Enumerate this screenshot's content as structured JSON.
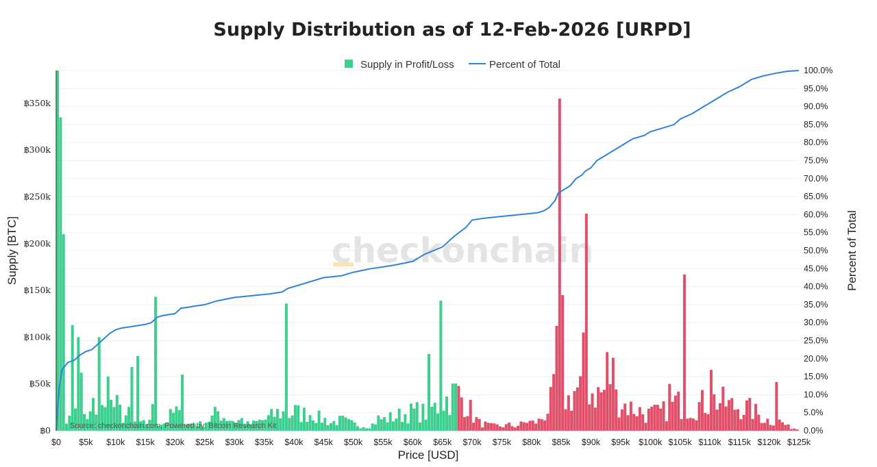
{
  "chart_data": {
    "type": "bar",
    "title": "Supply Distribution as of 12-Feb-2026 [URPD]",
    "xlabel": "Price [USD]",
    "ylabel": "Supply [BTC]",
    "y2label": "Percent of Total",
    "xlim": [
      0,
      125000
    ],
    "ylim": [
      0,
      385000
    ],
    "y2lim": [
      0,
      100
    ],
    "bin_width": 500,
    "current_price": 67500,
    "colors": {
      "profit": "#3ccf8e",
      "loss": "#e0506b",
      "line": "#2d83d9"
    },
    "legend": [
      {
        "name": "Supply in Profit/Loss",
        "kind": "square",
        "color": "#3ccf8e"
      },
      {
        "name": "Percent of Total",
        "kind": "line",
        "color": "#2d83d9"
      }
    ],
    "watermark": "checkonchain",
    "source": "Source: checkonchain.com, Powered by: Bitcoin Research Kit",
    "x_ticks": [
      {
        "v": 0,
        "l": "$0"
      },
      {
        "v": 5000,
        "l": "$5k"
      },
      {
        "v": 10000,
        "l": "$10k"
      },
      {
        "v": 15000,
        "l": "$15k"
      },
      {
        "v": 20000,
        "l": "$20k"
      },
      {
        "v": 25000,
        "l": "$25k"
      },
      {
        "v": 30000,
        "l": "$30k"
      },
      {
        "v": 35000,
        "l": "$35k"
      },
      {
        "v": 40000,
        "l": "$40k"
      },
      {
        "v": 45000,
        "l": "$45k"
      },
      {
        "v": 50000,
        "l": "$50k"
      },
      {
        "v": 55000,
        "l": "$55k"
      },
      {
        "v": 60000,
        "l": "$60k"
      },
      {
        "v": 65000,
        "l": "$65k"
      },
      {
        "v": 70000,
        "l": "$70k"
      },
      {
        "v": 75000,
        "l": "$75k"
      },
      {
        "v": 80000,
        "l": "$80k"
      },
      {
        "v": 85000,
        "l": "$85k"
      },
      {
        "v": 90000,
        "l": "$90k"
      },
      {
        "v": 95000,
        "l": "$95k"
      },
      {
        "v": 100000,
        "l": "$100k"
      },
      {
        "v": 105000,
        "l": "$105k"
      },
      {
        "v": 110000,
        "l": "$110k"
      },
      {
        "v": 115000,
        "l": "$115k"
      },
      {
        "v": 120000,
        "l": "$120k"
      },
      {
        "v": 125000,
        "l": "$125k"
      }
    ],
    "y_ticks": [
      {
        "v": 0,
        "l": "฿0"
      },
      {
        "v": 50000,
        "l": "฿50k"
      },
      {
        "v": 100000,
        "l": "฿100k"
      },
      {
        "v": 150000,
        "l": "฿150k"
      },
      {
        "v": 200000,
        "l": "฿200k"
      },
      {
        "v": 250000,
        "l": "฿250k"
      },
      {
        "v": 300000,
        "l": "฿300k"
      },
      {
        "v": 350000,
        "l": "฿350k"
      }
    ],
    "y2_ticks": [
      {
        "v": 0,
        "l": "0.0%"
      },
      {
        "v": 5,
        "l": "5.0%"
      },
      {
        "v": 10,
        "l": "10.0%"
      },
      {
        "v": 15,
        "l": "15.0%"
      },
      {
        "v": 20,
        "l": "20.0%"
      },
      {
        "v": 25,
        "l": "25.0%"
      },
      {
        "v": 30,
        "l": "30.0%"
      },
      {
        "v": 35,
        "l": "35.0%"
      },
      {
        "v": 40,
        "l": "40.0%"
      },
      {
        "v": 45,
        "l": "45.0%"
      },
      {
        "v": 50,
        "l": "50.0%"
      },
      {
        "v": 55,
        "l": "55.0%"
      },
      {
        "v": 60,
        "l": "60.0%"
      },
      {
        "v": 65,
        "l": "65.0%"
      },
      {
        "v": 70,
        "l": "70.0%"
      },
      {
        "v": 75,
        "l": "75.0%"
      },
      {
        "v": 80,
        "l": "80.0%"
      },
      {
        "v": 85,
        "l": "85.0%"
      },
      {
        "v": 90,
        "l": "90.0%"
      },
      {
        "v": 95,
        "l": "95.0%"
      },
      {
        "v": 100,
        "l": "100.0%"
      }
    ],
    "supply_profile": [
      [
        0,
        45000
      ],
      [
        500,
        25000
      ],
      [
        1000,
        12000
      ],
      [
        2000,
        15000
      ],
      [
        3000,
        35000
      ],
      [
        4000,
        28000
      ],
      [
        5000,
        12000
      ],
      [
        6000,
        30000
      ],
      [
        7000,
        28000
      ],
      [
        8000,
        24000
      ],
      [
        9000,
        32000
      ],
      [
        10000,
        30000
      ],
      [
        11000,
        18000
      ],
      [
        12000,
        20000
      ],
      [
        13000,
        10000
      ],
      [
        14000,
        8000
      ],
      [
        15000,
        10000
      ],
      [
        16000,
        24000
      ],
      [
        17000,
        10000
      ],
      [
        18000,
        10000
      ],
      [
        19000,
        18000
      ],
      [
        20000,
        24000
      ],
      [
        21000,
        12000
      ],
      [
        22000,
        8000
      ],
      [
        23000,
        10000
      ],
      [
        24000,
        8000
      ],
      [
        25000,
        12000
      ],
      [
        26000,
        16000
      ],
      [
        27000,
        24000
      ],
      [
        28000,
        18000
      ],
      [
        29000,
        15000
      ],
      [
        30000,
        12000
      ],
      [
        31000,
        14000
      ],
      [
        32000,
        8000
      ],
      [
        33000,
        9000
      ],
      [
        34000,
        12000
      ],
      [
        35000,
        14000
      ],
      [
        36000,
        18000
      ],
      [
        37000,
        22000
      ],
      [
        38000,
        22000
      ],
      [
        39000,
        20000
      ],
      [
        40000,
        24000
      ],
      [
        41000,
        20000
      ],
      [
        42000,
        22000
      ],
      [
        43000,
        22000
      ],
      [
        44000,
        16000
      ],
      [
        45000,
        14000
      ],
      [
        46000,
        10000
      ],
      [
        47000,
        12000
      ],
      [
        48000,
        13000
      ],
      [
        49000,
        10000
      ],
      [
        50000,
        8000
      ],
      [
        51000,
        7000
      ],
      [
        52000,
        6000
      ],
      [
        53000,
        8000
      ],
      [
        54000,
        15000
      ],
      [
        55000,
        14000
      ],
      [
        56000,
        16000
      ],
      [
        57000,
        18000
      ],
      [
        58000,
        20000
      ],
      [
        59000,
        22000
      ],
      [
        60000,
        24000
      ],
      [
        61000,
        24000
      ],
      [
        62000,
        22000
      ],
      [
        63000,
        28000
      ],
      [
        64000,
        30000
      ],
      [
        65000,
        38000
      ],
      [
        66000,
        42000
      ],
      [
        67000,
        48000
      ],
      [
        68000,
        42000
      ],
      [
        69000,
        34000
      ],
      [
        70000,
        18000
      ],
      [
        71000,
        10000
      ],
      [
        72000,
        8000
      ],
      [
        73000,
        6000
      ],
      [
        74000,
        6000
      ],
      [
        75000,
        6000
      ],
      [
        76000,
        7000
      ],
      [
        77000,
        6000
      ],
      [
        78000,
        8000
      ],
      [
        79000,
        12000
      ],
      [
        80000,
        10000
      ],
      [
        81000,
        12000
      ],
      [
        82000,
        20000
      ],
      [
        83000,
        35000
      ],
      [
        84000,
        55000
      ],
      [
        85000,
        45000
      ],
      [
        86000,
        38000
      ],
      [
        87000,
        50000
      ],
      [
        88000,
        52000
      ],
      [
        89000,
        55000
      ],
      [
        90000,
        50000
      ],
      [
        91000,
        46000
      ],
      [
        92000,
        48000
      ],
      [
        93000,
        45000
      ],
      [
        94000,
        40000
      ],
      [
        95000,
        35000
      ],
      [
        96000,
        30000
      ],
      [
        97000,
        28000
      ],
      [
        98000,
        25000
      ],
      [
        99000,
        20000
      ],
      [
        100000,
        22000
      ],
      [
        101000,
        22000
      ],
      [
        102000,
        24000
      ],
      [
        103000,
        30000
      ],
      [
        104000,
        35000
      ],
      [
        105000,
        32000
      ],
      [
        106000,
        30000
      ],
      [
        107000,
        30000
      ],
      [
        108000,
        32000
      ],
      [
        109000,
        35000
      ],
      [
        110000,
        38000
      ],
      [
        111000,
        38000
      ],
      [
        112000,
        35000
      ],
      [
        113000,
        32000
      ],
      [
        114000,
        30000
      ],
      [
        115000,
        30000
      ],
      [
        116000,
        28000
      ],
      [
        117000,
        25000
      ],
      [
        118000,
        20000
      ],
      [
        119000,
        15000
      ],
      [
        120000,
        12000
      ],
      [
        121000,
        14000
      ],
      [
        122000,
        10000
      ],
      [
        123000,
        5000
      ],
      [
        124000,
        3000
      ],
      [
        125000,
        1000
      ]
    ],
    "supply_spikes": [
      {
        "price": 0,
        "value": 385000
      },
      {
        "price": 500,
        "value": 335000
      },
      {
        "price": 1000,
        "value": 210000
      },
      {
        "price": 2500,
        "value": 60000
      },
      {
        "price": 2500,
        "value": 113000
      },
      {
        "price": 3500,
        "value": 100000
      },
      {
        "price": 4000,
        "value": 62000
      },
      {
        "price": 7000,
        "value": 100000
      },
      {
        "price": 8500,
        "value": 58000
      },
      {
        "price": 12500,
        "value": 68000
      },
      {
        "price": 13500,
        "value": 80000
      },
      {
        "price": 16500,
        "value": 143000
      },
      {
        "price": 21000,
        "value": 60000
      },
      {
        "price": 38500,
        "value": 136000
      },
      {
        "price": 62500,
        "value": 82000
      },
      {
        "price": 64500,
        "value": 139000
      },
      {
        "price": 84500,
        "value": 355000
      },
      {
        "price": 85000,
        "value": 145000
      },
      {
        "price": 84000,
        "value": 112000
      },
      {
        "price": 89000,
        "value": 232000
      },
      {
        "price": 88500,
        "value": 105000
      },
      {
        "price": 92500,
        "value": 84000
      },
      {
        "price": 93500,
        "value": 78000
      },
      {
        "price": 105500,
        "value": 167000
      },
      {
        "price": 103000,
        "value": 50000
      },
      {
        "price": 110000,
        "value": 65000
      },
      {
        "price": 121000,
        "value": 52000
      }
    ],
    "percent_of_total": [
      [
        0,
        0
      ],
      [
        500,
        12
      ],
      [
        1000,
        17
      ],
      [
        2000,
        19
      ],
      [
        3000,
        19.5
      ],
      [
        4000,
        21
      ],
      [
        5000,
        22
      ],
      [
        6000,
        22.5
      ],
      [
        7000,
        24
      ],
      [
        8000,
        25.5
      ],
      [
        9000,
        27
      ],
      [
        10000,
        28
      ],
      [
        11000,
        28.5
      ],
      [
        13000,
        29
      ],
      [
        15000,
        29.5
      ],
      [
        16000,
        30
      ],
      [
        17000,
        31.5
      ],
      [
        18000,
        32
      ],
      [
        20000,
        32.5
      ],
      [
        21000,
        34
      ],
      [
        23000,
        34.5
      ],
      [
        25000,
        35
      ],
      [
        27000,
        36
      ],
      [
        30000,
        37
      ],
      [
        33000,
        37.5
      ],
      [
        36000,
        38
      ],
      [
        38000,
        38.5
      ],
      [
        39000,
        39.5
      ],
      [
        41000,
        40.5
      ],
      [
        43000,
        41.5
      ],
      [
        45000,
        42.5
      ],
      [
        48000,
        43
      ],
      [
        50000,
        44
      ],
      [
        53000,
        45
      ],
      [
        55000,
        45.5
      ],
      [
        57000,
        46
      ],
      [
        60000,
        47
      ],
      [
        62000,
        49
      ],
      [
        65000,
        51
      ],
      [
        67000,
        54
      ],
      [
        69000,
        56.5
      ],
      [
        70000,
        58.5
      ],
      [
        72000,
        59
      ],
      [
        75000,
        59.5
      ],
      [
        78000,
        60
      ],
      [
        81000,
        60.5
      ],
      [
        82000,
        61
      ],
      [
        83000,
        62
      ],
      [
        84000,
        64
      ],
      [
        84500,
        66
      ],
      [
        85500,
        67
      ],
      [
        86500,
        68
      ],
      [
        87500,
        70
      ],
      [
        88500,
        71
      ],
      [
        89000,
        72
      ],
      [
        90000,
        73
      ],
      [
        91000,
        75
      ],
      [
        93000,
        77
      ],
      [
        95000,
        79
      ],
      [
        97000,
        81
      ],
      [
        99000,
        82
      ],
      [
        100000,
        83
      ],
      [
        102000,
        84
      ],
      [
        104000,
        85
      ],
      [
        105000,
        86.5
      ],
      [
        107000,
        88
      ],
      [
        109000,
        90
      ],
      [
        111000,
        92
      ],
      [
        113000,
        94
      ],
      [
        115000,
        95.5
      ],
      [
        117000,
        97.5
      ],
      [
        119000,
        98.5
      ],
      [
        121000,
        99.2
      ],
      [
        123000,
        99.8
      ],
      [
        125000,
        100
      ]
    ]
  }
}
